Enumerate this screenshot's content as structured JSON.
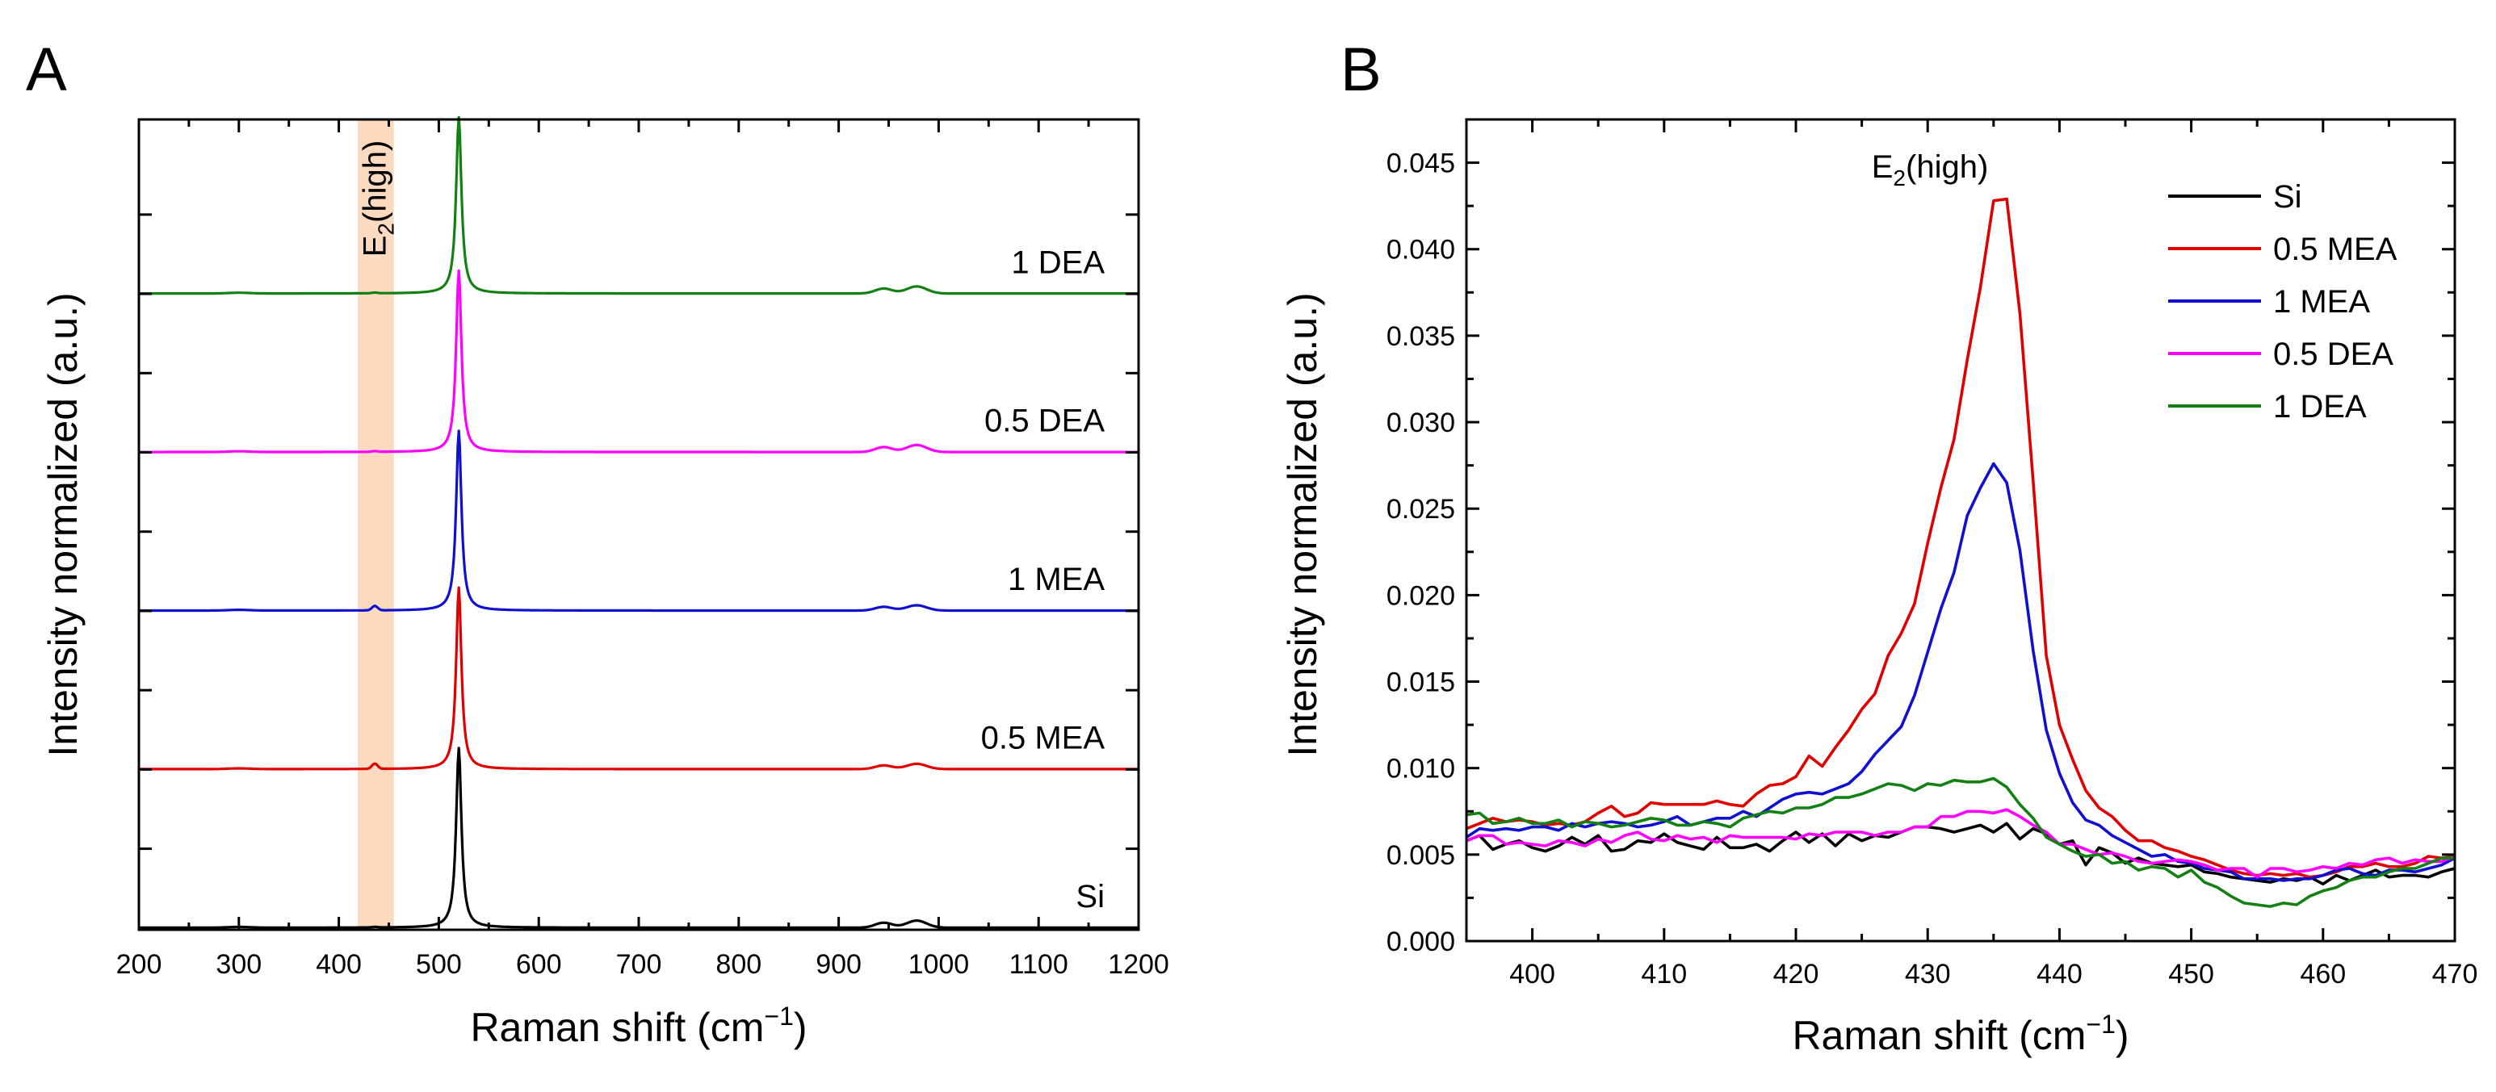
{
  "chart_data": [
    {
      "panel": "A",
      "type": "line",
      "xlabel": "Raman shift (cm⁻¹)",
      "ylabel": "Intensity normalized (a.u.)",
      "xlim": [
        200,
        1200
      ],
      "xticks": [
        200,
        300,
        400,
        500,
        600,
        700,
        800,
        900,
        1000,
        1100,
        1200
      ],
      "ylim": [
        0,
        4.6
      ],
      "stacked_offset": 0.9,
      "highlight_band": {
        "label": "E₂(high)",
        "range": [
          419,
          455
        ]
      },
      "series": [
        {
          "name": "Si",
          "label": "Si",
          "color": "#000000",
          "offset": 0.0,
          "peak_height": 1.02,
          "e2_peak": 0.003,
          "tail": 0.04
        },
        {
          "name": "0.5 MEA",
          "label": "0.5 MEA",
          "color": "#e00000",
          "offset": 0.9,
          "peak_height": 1.03,
          "e2_peak": 0.03,
          "tail": 0.03
        },
        {
          "name": "1 MEA",
          "label": "1 MEA",
          "color": "#1010d0",
          "offset": 1.8,
          "peak_height": 1.02,
          "e2_peak": 0.025,
          "tail": 0.03
        },
        {
          "name": "0.5 DEA",
          "label": "0.5 DEA",
          "color": "#ff00ff",
          "offset": 2.7,
          "peak_height": 1.03,
          "e2_peak": 0.004,
          "tail": 0.04
        },
        {
          "name": "1 DEA",
          "label": "1 DEA",
          "color": "#128012",
          "offset": 3.6,
          "peak_height": 1.0,
          "e2_peak": 0.004,
          "tail": 0.04
        }
      ]
    },
    {
      "panel": "B",
      "type": "line",
      "xlabel": "Raman shift (cm⁻¹)",
      "ylabel": "Intensity normalized (a.u.)",
      "xlim": [
        395,
        470
      ],
      "xticks": [
        400,
        410,
        420,
        430,
        440,
        450,
        460,
        470
      ],
      "ylim": [
        0.0,
        0.0475
      ],
      "yticks": [
        "0.000",
        "0.005",
        "0.010",
        "0.015",
        "0.020",
        "0.025",
        "0.030",
        "0.035",
        "0.040",
        "0.045"
      ],
      "annotation": "E₂(high)",
      "legend_position": "top-right",
      "x": [
        395,
        396,
        397,
        398,
        399,
        400,
        401,
        402,
        403,
        404,
        405,
        406,
        407,
        408,
        409,
        410,
        411,
        412,
        413,
        414,
        415,
        416,
        417,
        418,
        419,
        420,
        421,
        422,
        423,
        424,
        425,
        426,
        427,
        428,
        429,
        430,
        431,
        432,
        433,
        434,
        435,
        436,
        437,
        438,
        439,
        440,
        441,
        442,
        443,
        444,
        445,
        446,
        447,
        448,
        449,
        450,
        451,
        452,
        453,
        454,
        455,
        456,
        457,
        458,
        459,
        460,
        461,
        462,
        463,
        464,
        465,
        466,
        467,
        468,
        469,
        470
      ],
      "series": [
        {
          "name": "Si",
          "color": "#000000",
          "values": [
            0.0058,
            0.0061,
            0.0053,
            0.0056,
            0.0058,
            0.0054,
            0.0052,
            0.0055,
            0.006,
            0.0056,
            0.0061,
            0.0052,
            0.0053,
            0.0058,
            0.0057,
            0.0062,
            0.0057,
            0.0055,
            0.0053,
            0.006,
            0.0054,
            0.0054,
            0.0056,
            0.0052,
            0.0058,
            0.0063,
            0.0057,
            0.0062,
            0.0055,
            0.0062,
            0.0058,
            0.0061,
            0.006,
            0.0063,
            0.0066,
            0.0066,
            0.0065,
            0.0063,
            0.0065,
            0.0067,
            0.0063,
            0.0068,
            0.0059,
            0.0065,
            0.0062,
            0.0056,
            0.0058,
            0.0044,
            0.0054,
            0.0051,
            0.0045,
            0.0048,
            0.0045,
            0.0044,
            0.0043,
            0.0044,
            0.004,
            0.0039,
            0.0037,
            0.0036,
            0.0035,
            0.0034,
            0.0036,
            0.0035,
            0.0037,
            0.0033,
            0.0038,
            0.0035,
            0.0038,
            0.0041,
            0.0037,
            0.0038,
            0.0038,
            0.0037,
            0.004,
            0.0042
          ]
        },
        {
          "name": "0.5 MEA",
          "color": "#e00000",
          "values": [
            0.0065,
            0.0068,
            0.0071,
            0.0069,
            0.007,
            0.0069,
            0.0067,
            0.0068,
            0.0067,
            0.0069,
            0.0074,
            0.0078,
            0.0072,
            0.0074,
            0.008,
            0.0079,
            0.0079,
            0.0079,
            0.0079,
            0.0081,
            0.0079,
            0.0078,
            0.0085,
            0.009,
            0.0091,
            0.0095,
            0.0107,
            0.0101,
            0.0112,
            0.0122,
            0.0134,
            0.0143,
            0.0165,
            0.0178,
            0.0195,
            0.023,
            0.0262,
            0.029,
            0.0336,
            0.0378,
            0.0428,
            0.0429,
            0.0363,
            0.0266,
            0.0165,
            0.0125,
            0.0105,
            0.0087,
            0.0077,
            0.0072,
            0.0064,
            0.0058,
            0.0058,
            0.0054,
            0.0052,
            0.0049,
            0.0047,
            0.0044,
            0.0041,
            0.0039,
            0.0038,
            0.0039,
            0.0038,
            0.0039,
            0.0037,
            0.0038,
            0.004,
            0.0043,
            0.0043,
            0.0045,
            0.0043,
            0.0043,
            0.0045,
            0.0049,
            0.0048,
            0.0049
          ]
        },
        {
          "name": "1 MEA",
          "color": "#1010d0",
          "values": [
            0.006,
            0.0065,
            0.0064,
            0.0065,
            0.0064,
            0.0066,
            0.0066,
            0.0064,
            0.0068,
            0.0066,
            0.0068,
            0.0069,
            0.0068,
            0.0066,
            0.0067,
            0.0069,
            0.0072,
            0.0067,
            0.0069,
            0.0071,
            0.0071,
            0.0075,
            0.0072,
            0.0077,
            0.0082,
            0.0085,
            0.0086,
            0.0085,
            0.0088,
            0.0091,
            0.0098,
            0.0108,
            0.0116,
            0.0124,
            0.0142,
            0.0167,
            0.0192,
            0.0213,
            0.0246,
            0.0262,
            0.0276,
            0.0265,
            0.0226,
            0.0168,
            0.0122,
            0.0097,
            0.008,
            0.007,
            0.0067,
            0.0061,
            0.0057,
            0.0053,
            0.0049,
            0.005,
            0.0046,
            0.0045,
            0.0042,
            0.0041,
            0.004,
            0.0036,
            0.0036,
            0.0036,
            0.0035,
            0.0036,
            0.0036,
            0.0038,
            0.0041,
            0.0042,
            0.0039,
            0.0038,
            0.0041,
            0.0041,
            0.004,
            0.0042,
            0.0044,
            0.0048
          ]
        },
        {
          "name": "0.5 DEA",
          "color": "#ff00ff",
          "values": [
            0.0058,
            0.0061,
            0.0061,
            0.0056,
            0.0057,
            0.0056,
            0.0055,
            0.0058,
            0.0057,
            0.0055,
            0.0059,
            0.0057,
            0.0061,
            0.0063,
            0.0059,
            0.0058,
            0.0061,
            0.0059,
            0.006,
            0.0057,
            0.0061,
            0.006,
            0.006,
            0.006,
            0.006,
            0.0059,
            0.0062,
            0.0061,
            0.0063,
            0.0063,
            0.0063,
            0.0061,
            0.0063,
            0.0063,
            0.0066,
            0.0066,
            0.0072,
            0.0072,
            0.0075,
            0.0075,
            0.0074,
            0.0076,
            0.0072,
            0.0067,
            0.0063,
            0.0056,
            0.0056,
            0.0053,
            0.005,
            0.0051,
            0.0049,
            0.0046,
            0.0045,
            0.0046,
            0.0047,
            0.0046,
            0.0044,
            0.0041,
            0.0042,
            0.0042,
            0.0037,
            0.0042,
            0.0042,
            0.004,
            0.0041,
            0.0043,
            0.0042,
            0.0045,
            0.0044,
            0.0047,
            0.0048,
            0.0045,
            0.0047,
            0.0046,
            0.0046,
            0.0049
          ]
        },
        {
          "name": "1 DEA",
          "color": "#128012",
          "values": [
            0.0073,
            0.0074,
            0.0068,
            0.0069,
            0.0071,
            0.0068,
            0.0068,
            0.007,
            0.0066,
            0.0069,
            0.0068,
            0.0066,
            0.0067,
            0.0069,
            0.0071,
            0.007,
            0.0067,
            0.0067,
            0.0069,
            0.0068,
            0.0066,
            0.0071,
            0.0073,
            0.0075,
            0.0074,
            0.0077,
            0.0077,
            0.0079,
            0.0083,
            0.0083,
            0.0085,
            0.0088,
            0.0091,
            0.009,
            0.0087,
            0.0091,
            0.009,
            0.0093,
            0.0092,
            0.0092,
            0.0094,
            0.0089,
            0.0079,
            0.0071,
            0.006,
            0.0056,
            0.0052,
            0.0049,
            0.005,
            0.0045,
            0.0046,
            0.0041,
            0.0043,
            0.0042,
            0.0037,
            0.0041,
            0.0034,
            0.0031,
            0.0026,
            0.0022,
            0.0021,
            0.002,
            0.0022,
            0.0021,
            0.0026,
            0.0029,
            0.0031,
            0.0035,
            0.0037,
            0.0037,
            0.004,
            0.0042,
            0.0042,
            0.0045,
            0.0048,
            0.0048
          ]
        }
      ]
    }
  ]
}
